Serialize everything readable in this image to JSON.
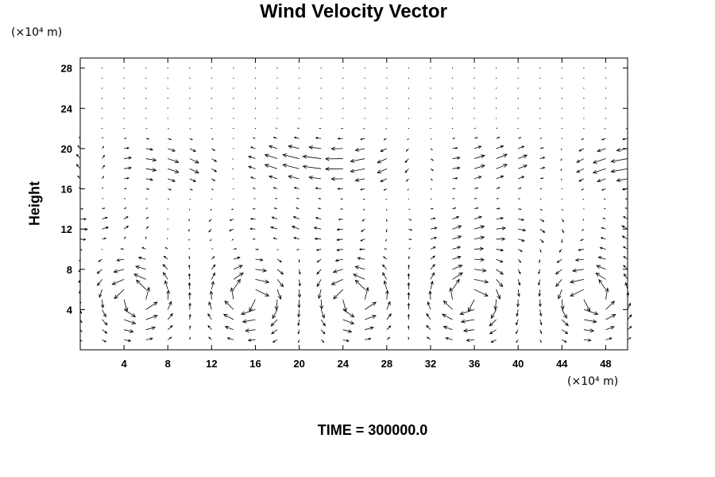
{
  "chart_data": {
    "type": "vector_field",
    "title": "Wind Velocity Vector",
    "ylabel": "Height",
    "x_unit": "(×10⁴ m)",
    "y_unit": "(×10⁴ m)",
    "footer": "TIME = 300000.0",
    "xlim": [
      0,
      50
    ],
    "ylim": [
      0,
      29
    ],
    "xticks": [
      4,
      8,
      12,
      16,
      20,
      24,
      28,
      32,
      36,
      40,
      44,
      48
    ],
    "yticks": [
      4,
      8,
      12,
      16,
      20,
      24,
      28
    ],
    "grid": false,
    "field": {
      "x_range": [
        0,
        50
      ],
      "x_step": 2,
      "y_range": [
        1,
        28
      ],
      "y_step": 1,
      "note": "vectors sampled on regular grid; approximate reconstruction of circulation cells",
      "u_max": 1.6,
      "v_max": 1.1
    },
    "colors": {
      "axes": "#000000",
      "arrows": "#000000",
      "background": "#ffffff"
    }
  }
}
